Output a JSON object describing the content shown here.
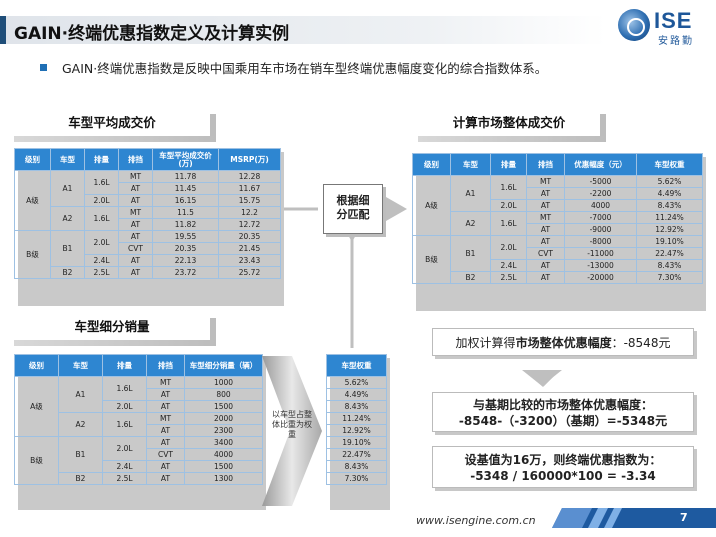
{
  "header": {
    "title": "GAIN·终端优惠指数定义及计算实例",
    "logo_text": "ISE",
    "logo_sub": "安路勤"
  },
  "intro": "GAIN·终端优惠指数是反映中国乘用车市场在销车型终端优惠幅度变化的综合指数体系。",
  "section_titles": {
    "avg_price": "车型平均成交价",
    "market_price": "计算市场整体成交价",
    "sales": "车型细分销量"
  },
  "match_box": [
    "根据细",
    "分匹配"
  ],
  "weight_arrow_text": "以车型占整体比重为权重",
  "table_avg": {
    "headers": [
      "级别",
      "车型",
      "排量",
      "排挡",
      "车型平均成交价(万)",
      "MSRP(万)"
    ],
    "rows": [
      [
        "MT",
        "11.78",
        "12.28"
      ],
      [
        "AT",
        "11.45",
        "11.67"
      ],
      [
        "AT",
        "16.15",
        "15.75"
      ],
      [
        "MT",
        "11.5",
        "12.2"
      ],
      [
        "AT",
        "11.82",
        "12.72"
      ],
      [
        "AT",
        "19.55",
        "20.35"
      ],
      [
        "CVT",
        "20.35",
        "21.45"
      ],
      [
        "AT",
        "22.13",
        "23.43"
      ],
      [
        "AT",
        "23.72",
        "25.72"
      ]
    ]
  },
  "table_market": {
    "headers": [
      "级别",
      "车型",
      "排量",
      "排挡",
      "优惠幅度（元）",
      "车型权重"
    ],
    "rows": [
      [
        "MT",
        "-5000",
        "5.62%"
      ],
      [
        "AT",
        "-2200",
        "4.49%"
      ],
      [
        "AT",
        "4000",
        "8.43%"
      ],
      [
        "MT",
        "-7000",
        "11.24%"
      ],
      [
        "AT",
        "-9000",
        "12.92%"
      ],
      [
        "AT",
        "-8000",
        "19.10%"
      ],
      [
        "CVT",
        "-11000",
        "22.47%"
      ],
      [
        "AT",
        "-13000",
        "8.43%"
      ],
      [
        "AT",
        "-20000",
        "7.30%"
      ]
    ]
  },
  "table_sales": {
    "headers": [
      "级别",
      "车型",
      "排量",
      "排挡",
      "车型细分销量（辆）"
    ],
    "rows": [
      [
        "MT",
        "1000"
      ],
      [
        "AT",
        "800"
      ],
      [
        "AT",
        "1500"
      ],
      [
        "MT",
        "2000"
      ],
      [
        "AT",
        "2300"
      ],
      [
        "AT",
        "3400"
      ],
      [
        "CVT",
        "4000"
      ],
      [
        "AT",
        "1500"
      ],
      [
        "AT",
        "1300"
      ]
    ]
  },
  "table_weight": {
    "header": "车型权重",
    "rows": [
      "5.62%",
      "4.49%",
      "8.43%",
      "11.24%",
      "12.92%",
      "19.10%",
      "22.47%",
      "8.43%",
      "7.30%"
    ]
  },
  "group_labels": {
    "class_a": "A级",
    "class_b": "B级",
    "a1": "A1",
    "a2": "A2",
    "b1": "B1",
    "b2": "B2",
    "d16": "1.6L",
    "d20": "2.0L",
    "d24": "2.4L",
    "d25": "2.5L"
  },
  "result1": {
    "prefix": "加权计算得",
    "bold": "市场整体优惠幅度",
    "value": "：-8548元"
  },
  "result2": {
    "line1": "与基期比较的市场整体优惠幅度：",
    "line2": "-8548-（-3200）（基期）=-5348元"
  },
  "result3": {
    "line1": "设基值为16万，则终端优惠指数为：",
    "line2": "-5348 / 160000*100 = -3.34"
  },
  "footer": {
    "url": "www.isengine.com.cn",
    "page": "7"
  },
  "colors": {
    "table_header": "#2e86d1",
    "table_border": "#9ec1e3",
    "title_accent": "#1f4e79"
  }
}
